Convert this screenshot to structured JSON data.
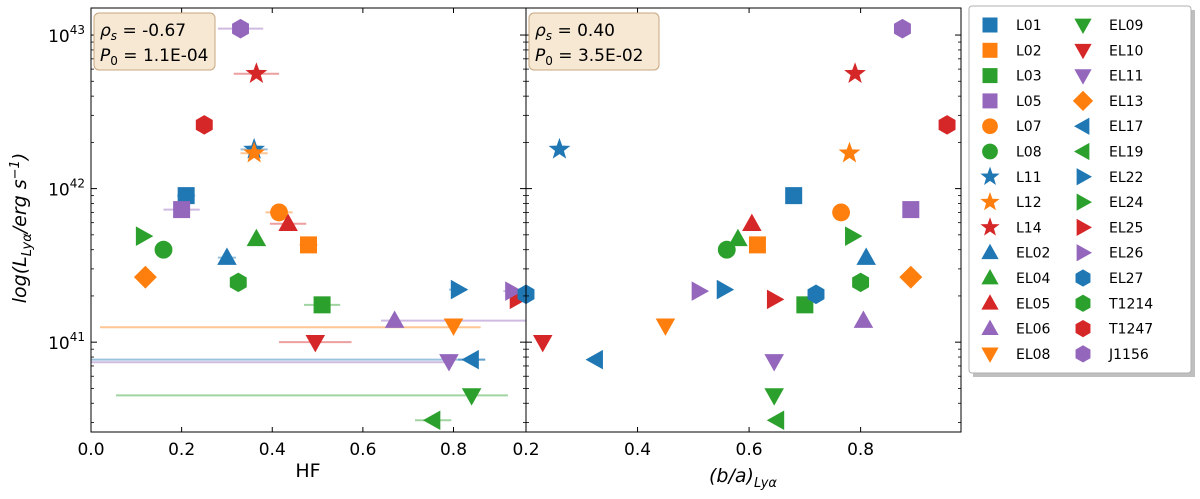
{
  "chart_data": {
    "type": "scatter",
    "y_axis": {
      "label_main": "log(L",
      "label_sub": "Lyα",
      "label_tail": "/erg s",
      "label_sup": "−1",
      "label_close": ")",
      "scale": "log",
      "ylim": [
        26000000000000000000000000000000000000000,
        15000000000000000000000000000000000000000000
      ],
      "ticks": [
        {
          "value": 1e+41,
          "base": "10",
          "exp": "41"
        },
        {
          "value": 1e+42,
          "base": "10",
          "exp": "42"
        },
        {
          "value": 1e+43,
          "base": "10",
          "exp": "43"
        }
      ]
    },
    "panels": [
      {
        "id": "left",
        "xlabel": "HF",
        "xlim": [
          0.0,
          0.96
        ],
        "xticks": [
          "0.0",
          "0.2",
          "0.4",
          "0.6",
          "0.8"
        ],
        "xtick_values": [
          0.0,
          0.2,
          0.4,
          0.6,
          0.8
        ],
        "stat_rho": "ρ",
        "stat_rho_sub": "s",
        "stat_rho_value": " = -0.67",
        "stat_p": "P",
        "stat_p_sub": "0",
        "stat_p_value": " = 1.1E-04",
        "points": [
          {
            "name": "L01",
            "x": 0.21,
            "y": 9e+41,
            "xerr": 0.02
          },
          {
            "name": "L02",
            "x": 0.48,
            "y": 4.3e+41,
            "xerr": 0.02
          },
          {
            "name": "L03",
            "x": 0.51,
            "y": 1.75e+41,
            "xerr": 0.04
          },
          {
            "name": "L05",
            "x": 0.2,
            "y": 7.3e+41,
            "xerr": 0.04
          },
          {
            "name": "L07",
            "x": 0.415,
            "y": 7e+41,
            "xerr": 0.03
          },
          {
            "name": "L08",
            "x": 0.16,
            "y": 4e+41,
            "xerr": 0.0
          },
          {
            "name": "L11",
            "x": 0.36,
            "y": 1.8e+42,
            "xerr": 0.03
          },
          {
            "name": "L12",
            "x": 0.36,
            "y": 1.7e+42,
            "xerr": 0.03
          },
          {
            "name": "L14",
            "x": 0.365,
            "y": 5.6e+42,
            "xerr": 0.05
          },
          {
            "name": "EL02",
            "x": 0.3,
            "y": 3.55e+41,
            "xerr": 0.02
          },
          {
            "name": "EL04",
            "x": 0.365,
            "y": 4.7e+41,
            "xerr": 0.0
          },
          {
            "name": "EL05",
            "x": 0.435,
            "y": 5.9e+41,
            "xerr": 0.04
          },
          {
            "name": "EL06",
            "x": 0.67,
            "y": 1.38e+41,
            "xerr": 0.0
          },
          {
            "name": "EL08",
            "x": 0.8,
            "y": 1.28e+41,
            "xerr": 0.0
          },
          {
            "name": "EL09",
            "x": 0.84,
            "y": 4.5e+40,
            "xerr": 0.0
          },
          {
            "name": "EL10",
            "x": 0.495,
            "y": 1e+41,
            "xerr": 0.08
          },
          {
            "name": "EL11",
            "x": 0.79,
            "y": 7.5e+40,
            "xerr": 0.01
          },
          {
            "name": "EL13",
            "x": 0.12,
            "y": 2.65e+41,
            "xerr": 0.0
          },
          {
            "name": "EL17",
            "x": 0.84,
            "y": 7.7e+40,
            "xerr": 0.03
          },
          {
            "name": "EL19",
            "x": 0.755,
            "y": 3.1e+40,
            "xerr": 0.04
          },
          {
            "name": "EL22",
            "x": 0.81,
            "y": 2.2e+41,
            "xerr": 0.02
          },
          {
            "name": "EL24",
            "x": 0.115,
            "y": 4.9e+41,
            "xerr": 0.0
          },
          {
            "name": "EL25",
            "x": 0.94,
            "y": 1.9e+41,
            "xerr": 0.0
          },
          {
            "name": "EL26",
            "x": 0.93,
            "y": 2.15e+41,
            "xerr": 0.02
          },
          {
            "name": "EL27",
            "x": 0.96,
            "y": 2.05e+41,
            "xerr": 0.0
          },
          {
            "name": "T1214",
            "x": 0.325,
            "y": 2.45e+41,
            "xerr": 0.0
          },
          {
            "name": "T1247",
            "x": 0.25,
            "y": 2.6e+42,
            "xerr": 0.0
          },
          {
            "name": "J1156",
            "x": 0.33,
            "y": 1.1e+43,
            "xerr": 0.05
          }
        ],
        "long_errorbars": [
          {
            "name": "L12",
            "y": 1.25e+41,
            "x0": 0.02,
            "x1": 0.86
          },
          {
            "name": "EL06",
            "y": 1.38e+41,
            "x0": 0.64,
            "x1": 0.96
          },
          {
            "name": "EL17",
            "y": 7.7e+40,
            "x0": 0.0,
            "x1": 0.87
          },
          {
            "name": "EL26",
            "y": 7.4e+40,
            "x0": 0.0,
            "x1": 0.8
          },
          {
            "name": "EL04",
            "y": 4.5e+40,
            "x0": 0.055,
            "x1": 0.92
          }
        ]
      },
      {
        "id": "right",
        "xlabel_main": "(b/a)",
        "xlabel_sub": "Lyα",
        "xlim": [
          0.2,
          0.98
        ],
        "xticks": [
          "0.2",
          "0.4",
          "0.6",
          "0.8"
        ],
        "xtick_values": [
          0.2,
          0.4,
          0.6,
          0.8
        ],
        "stat_rho": "ρ",
        "stat_rho_sub": "s",
        "stat_rho_value": " = 0.40",
        "stat_p": "P",
        "stat_p_sub": "0",
        "stat_p_value": " = 3.5E-02",
        "points": [
          {
            "name": "L01",
            "x": 0.68,
            "y": 9e+41
          },
          {
            "name": "L02",
            "x": 0.615,
            "y": 4.3e+41
          },
          {
            "name": "L03",
            "x": 0.7,
            "y": 1.75e+41
          },
          {
            "name": "L05",
            "x": 0.89,
            "y": 7.3e+41
          },
          {
            "name": "L07",
            "x": 0.765,
            "y": 7e+41
          },
          {
            "name": "L08",
            "x": 0.56,
            "y": 4e+41
          },
          {
            "name": "L11",
            "x": 0.26,
            "y": 1.8e+42
          },
          {
            "name": "L12",
            "x": 0.78,
            "y": 1.7e+42
          },
          {
            "name": "L14",
            "x": 0.79,
            "y": 5.6e+42
          },
          {
            "name": "EL02",
            "x": 0.81,
            "y": 3.55e+41
          },
          {
            "name": "EL04",
            "x": 0.58,
            "y": 4.7e+41
          },
          {
            "name": "EL05",
            "x": 0.605,
            "y": 5.9e+41
          },
          {
            "name": "EL06",
            "x": 0.805,
            "y": 1.38e+41
          },
          {
            "name": "EL08",
            "x": 0.45,
            "y": 1.28e+41
          },
          {
            "name": "EL09",
            "x": 0.645,
            "y": 4.5e+40
          },
          {
            "name": "EL10",
            "x": 0.23,
            "y": 1e+41
          },
          {
            "name": "EL11",
            "x": 0.645,
            "y": 7.5e+40
          },
          {
            "name": "EL13",
            "x": 0.89,
            "y": 2.65e+41
          },
          {
            "name": "EL17",
            "x": 0.325,
            "y": 7.7e+40
          },
          {
            "name": "EL19",
            "x": 0.65,
            "y": 3.1e+40
          },
          {
            "name": "EL22",
            "x": 0.555,
            "y": 2.2e+41
          },
          {
            "name": "EL24",
            "x": 0.785,
            "y": 4.9e+41
          },
          {
            "name": "EL25",
            "x": 0.645,
            "y": 1.9e+41
          },
          {
            "name": "EL26",
            "x": 0.51,
            "y": 2.15e+41
          },
          {
            "name": "EL27",
            "x": 0.72,
            "y": 2.05e+41
          },
          {
            "name": "T1214",
            "x": 0.8,
            "y": 2.45e+41
          },
          {
            "name": "T1247",
            "x": 0.955,
            "y": 2.6e+42
          },
          {
            "name": "J1156",
            "x": 0.875,
            "y": 1.1e+43
          }
        ]
      }
    ],
    "legend": {
      "placement": "outside-right",
      "entries": [
        {
          "name": "L01",
          "marker": "square",
          "color": "#1f77b4"
        },
        {
          "name": "L02",
          "marker": "square",
          "color": "#ff7f0e"
        },
        {
          "name": "L03",
          "marker": "square",
          "color": "#2ca02c"
        },
        {
          "name": "L05",
          "marker": "square",
          "color": "#9467bd"
        },
        {
          "name": "L07",
          "marker": "circle",
          "color": "#ff7f0e"
        },
        {
          "name": "L08",
          "marker": "circle",
          "color": "#2ca02c"
        },
        {
          "name": "L11",
          "marker": "star",
          "color": "#1f77b4"
        },
        {
          "name": "L12",
          "marker": "star",
          "color": "#ff7f0e"
        },
        {
          "name": "L14",
          "marker": "star",
          "color": "#d62728"
        },
        {
          "name": "EL02",
          "marker": "tri-up",
          "color": "#1f77b4"
        },
        {
          "name": "EL04",
          "marker": "tri-up",
          "color": "#2ca02c"
        },
        {
          "name": "EL05",
          "marker": "tri-up",
          "color": "#d62728"
        },
        {
          "name": "EL06",
          "marker": "tri-up",
          "color": "#9467bd"
        },
        {
          "name": "EL08",
          "marker": "tri-down",
          "color": "#ff7f0e"
        },
        {
          "name": "EL09",
          "marker": "tri-down",
          "color": "#2ca02c"
        },
        {
          "name": "EL10",
          "marker": "tri-down",
          "color": "#d62728"
        },
        {
          "name": "EL11",
          "marker": "tri-down",
          "color": "#9467bd"
        },
        {
          "name": "EL13",
          "marker": "diamond",
          "color": "#ff7f0e"
        },
        {
          "name": "EL17",
          "marker": "tri-left",
          "color": "#1f77b4"
        },
        {
          "name": "EL19",
          "marker": "tri-left",
          "color": "#2ca02c"
        },
        {
          "name": "EL22",
          "marker": "tri-right",
          "color": "#1f77b4"
        },
        {
          "name": "EL24",
          "marker": "tri-right",
          "color": "#2ca02c"
        },
        {
          "name": "EL25",
          "marker": "tri-right",
          "color": "#d62728"
        },
        {
          "name": "EL26",
          "marker": "tri-right",
          "color": "#9467bd"
        },
        {
          "name": "EL27",
          "marker": "hexagon",
          "color": "#1f77b4"
        },
        {
          "name": "T1214",
          "marker": "hexagon",
          "color": "#2ca02c"
        },
        {
          "name": "T1247",
          "marker": "hexagon",
          "color": "#d62728"
        },
        {
          "name": "J1156",
          "marker": "hexagon",
          "color": "#9467bd"
        }
      ]
    },
    "colors": {
      "stat_box_fill": "#f6e8d3",
      "stat_box_edge": "#c7a77f"
    }
  }
}
